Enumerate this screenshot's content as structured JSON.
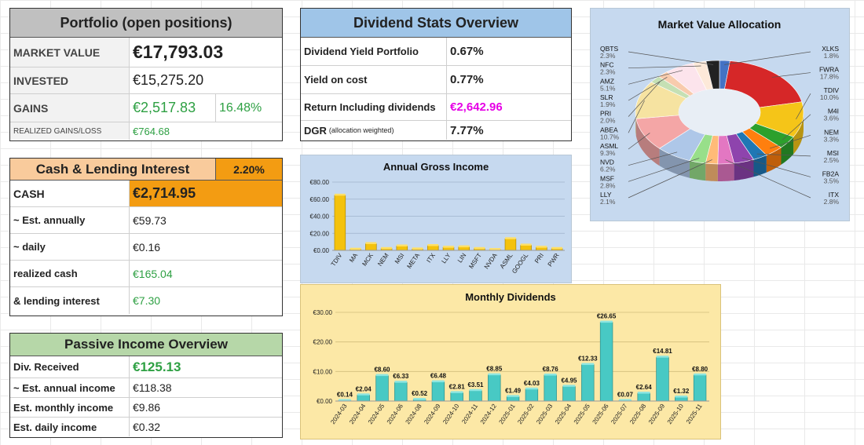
{
  "portfolio": {
    "title": "Portfolio (open positions)",
    "market_value_label": "MARKET VALUE",
    "market_value": "€17,793.03",
    "invested_label": "INVESTED",
    "invested": "€15,275.20",
    "gains_label": "GAINS",
    "gains": "€2,517.83",
    "gains_pct": "16.48%",
    "realized_label": "REALIZED GAINS/LOSS",
    "realized": "€764.68"
  },
  "dividend_stats": {
    "title": "Dividend Stats Overview",
    "yield_portfolio_label": "Dividend Yield Portfolio",
    "yield_portfolio": "0.67%",
    "yield_on_cost_label": "Yield on cost",
    "yield_on_cost": "0.77%",
    "return_incl_label": "Return Including dividends",
    "return_incl": "€2,642.96",
    "dgr_label": "DGR",
    "dgr_note": "(allocation weighted)",
    "dgr": "7.77%"
  },
  "cash": {
    "title": "Cash & Lending Interest",
    "rate": "2.20%",
    "cash_label": "CASH",
    "cash": "€2,714.95",
    "annual_label": "~ Est. annually",
    "annual": "€59.73",
    "daily_label": "~ daily",
    "daily": "€0.16",
    "realized_cash_label": "realized cash",
    "realized_cash": "€165.04",
    "lending_label": "& lending interest",
    "lending": "€7.30"
  },
  "passive": {
    "title": "Passive Income Overview",
    "received_label": "Div. Received",
    "received": "€125.13",
    "annual_label": "~ Est. annual income",
    "annual": "€118.38",
    "monthly_label": "Est. monthly income",
    "monthly": "€9.86",
    "daily_label": "Est. daily income",
    "daily": "€0.32"
  },
  "colors": {
    "header_gray": "#c0c0c0",
    "header_blue": "#9fc5e8",
    "header_orange": "#f9cb9c",
    "rate_orange": "#f39c12",
    "header_green": "#b6d7a8",
    "green_text": "#2ea043",
    "magenta_text": "#e600e6",
    "gold_bar": "#f4c20d",
    "teal_bar": "#48c9c4"
  },
  "chart_data": [
    {
      "type": "bar",
      "title": "Annual Gross Income",
      "categories": [
        "TDIV",
        "MA",
        "MCK",
        "NEM",
        "MSI",
        "META",
        "ITX",
        "LLY",
        "LIN",
        "MSFT",
        "NVDA",
        "ASML",
        "GOOGL",
        "PRI",
        "PWR"
      ],
      "values": [
        64.5,
        1.2,
        7.8,
        2.0,
        5.0,
        1.5,
        5.5,
        3.5,
        4.0,
        2.0,
        0.8,
        13.5,
        6.0,
        3.5,
        2.0
      ],
      "yticks": [
        "€0.00",
        "€20.00",
        "€40.00",
        "€60.00",
        "€80.00"
      ],
      "ylim": [
        0,
        80
      ]
    },
    {
      "type": "bar",
      "title": "Monthly Dividends",
      "categories": [
        "2024-03",
        "2024-04",
        "2024-05",
        "2024-06",
        "2024-08",
        "2024-09",
        "2024-10",
        "2024-11",
        "2024-12",
        "2025-01",
        "2025-02",
        "2025-03",
        "2025-04",
        "2025-05",
        "2025-06",
        "2025-07",
        "2025-08",
        "2025-09",
        "2025-10",
        "2025-11"
      ],
      "values": [
        0.14,
        2.04,
        8.6,
        6.33,
        0.52,
        6.48,
        2.81,
        3.51,
        8.85,
        1.49,
        4.03,
        8.76,
        4.95,
        12.33,
        26.65,
        0.07,
        2.64,
        14.81,
        1.32,
        8.8
      ],
      "labels": [
        "€0.14",
        "€2.04",
        "€8.60",
        "€6.33",
        "€0.52",
        "€6.48",
        "€2.81",
        "€3.51",
        "€8.85",
        "€1.49",
        "€4.03",
        "€8.76",
        "€4.95",
        "€12.33",
        "€26.65",
        "€0.07",
        "€2.64",
        "€14.81",
        "€1.32",
        "€8.80"
      ],
      "yticks": [
        "€0.00",
        "€10.00",
        "€20.00",
        "€30.00"
      ],
      "ylim": [
        0,
        30
      ]
    },
    {
      "type": "pie",
      "title": "Market Value Allocation",
      "slices": [
        {
          "name": "XLKS",
          "pct": "1.8%",
          "value": 1.8,
          "color": "#4472c4"
        },
        {
          "name": "FWRA",
          "pct": "17.8%",
          "value": 17.8,
          "color": "#d62728"
        },
        {
          "name": "TDIV",
          "pct": "10.0%",
          "value": 10.0,
          "color": "#f5c518"
        },
        {
          "name": "M4I",
          "pct": "3.6%",
          "value": 3.6,
          "color": "#2ca02c"
        },
        {
          "name": "NEM",
          "pct": "3.3%",
          "value": 3.3,
          "color": "#ff7f0e"
        },
        {
          "name": "MSI",
          "pct": "2.5%",
          "value": 2.5,
          "color": "#1f77b4"
        },
        {
          "name": "FB2A",
          "pct": "3.5%",
          "value": 3.5,
          "color": "#8e44ad"
        },
        {
          "name": "ITX",
          "pct": "2.8%",
          "value": 2.8,
          "color": "#e377c2"
        },
        {
          "name": "LLY",
          "pct": "2.1%",
          "value": 2.1,
          "color": "#ffbb78"
        },
        {
          "name": "MSF",
          "pct": "2.8%",
          "value": 2.8,
          "color": "#98df8a"
        },
        {
          "name": "NVD",
          "pct": "6.2%",
          "value": 6.2,
          "color": "#aec7e8"
        },
        {
          "name": "ASML",
          "pct": "9.3%",
          "value": 9.3,
          "color": "#f4a6a6"
        },
        {
          "name": "ABEA",
          "pct": "10.7%",
          "value": 10.7,
          "color": "#f6e3a1"
        },
        {
          "name": "PRI",
          "pct": "2.0%",
          "value": 2.0,
          "color": "#c5e0b4"
        },
        {
          "name": "SLR",
          "pct": "1.9%",
          "value": 1.9,
          "color": "#f8cbad"
        },
        {
          "name": "AMZ",
          "pct": "5.1%",
          "value": 5.1,
          "color": "#fce4ec"
        },
        {
          "name": "NFC",
          "pct": "2.3%",
          "value": 2.3,
          "color": "#fde9d9"
        },
        {
          "name": "QBTS",
          "pct": "2.3%",
          "value": 2.3,
          "color": "#222222"
        }
      ]
    }
  ]
}
